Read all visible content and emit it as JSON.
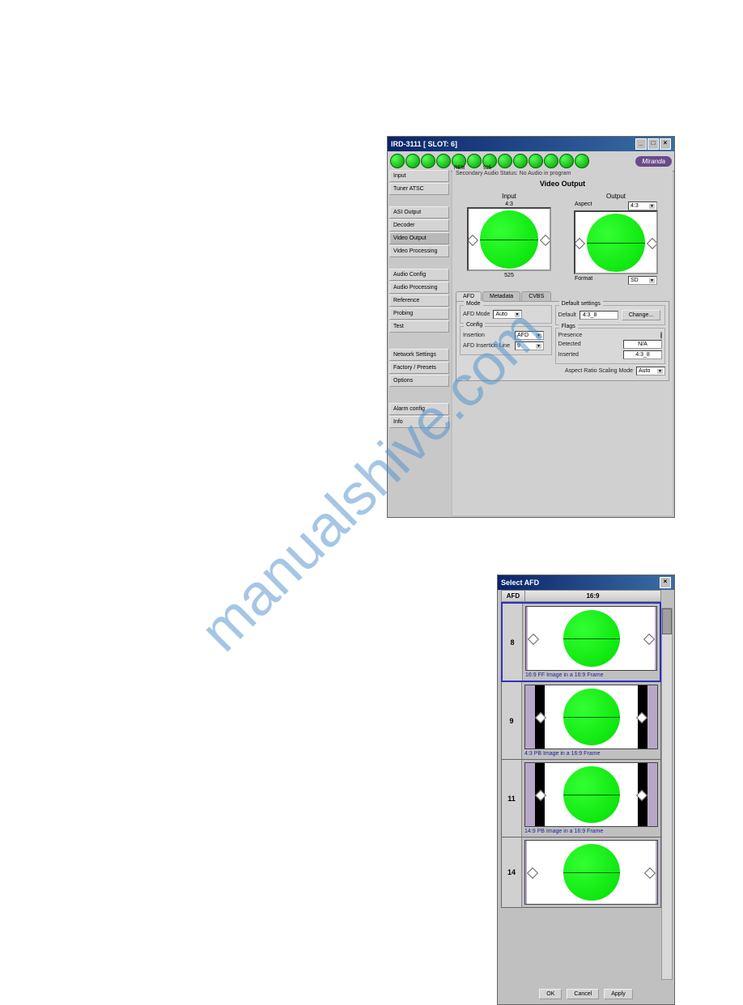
{
  "watermark": "manualshive.com",
  "window1": {
    "title": "IRD-3111 [ SLOT: 6]",
    "brand": "Miranda",
    "toolbar_sublabels": {
      "rem": "REM",
      "s25": "525"
    },
    "status": "Secondary Audio Status: No Audio in program",
    "panel_title": "Video Output",
    "sidebar": [
      "Input",
      "Tuner ATSC",
      "",
      "ASI Output",
      "Decoder",
      "Video Output",
      "Video Processing",
      "",
      "Audio Config",
      "Audio Processing",
      "Reference",
      "Probing",
      "Test",
      "",
      "Network Settings",
      "Factory / Presets",
      "Options",
      "",
      "Alarm config",
      "Info"
    ],
    "input": {
      "label": "Input",
      "aspect": "4:3",
      "format": "525"
    },
    "output": {
      "label": "Output",
      "aspect_label": "Aspect",
      "aspect_value": "4:3",
      "format_label": "Format",
      "format_value": "SD"
    },
    "tabs": [
      "AFD",
      "Metadata",
      "CVBS"
    ],
    "afd": {
      "mode_group": "Mode",
      "afd_mode_label": "AFD Mode",
      "afd_mode_value": "Auto",
      "config_group": "Config",
      "insertion_label": "Insertion",
      "insertion_value": "AFD",
      "afd_line_label": "AFD Insertion Line",
      "afd_line_value": "9",
      "default_group": "Default settings",
      "default_label": "Default",
      "default_value": "4:3_8",
      "change_btn": "Change...",
      "flags_group": "Flags",
      "presence_label": "Presence",
      "detected_label": "Detected",
      "detected_value": "N/A",
      "inserted_label": "Inserted",
      "inserted_value": "4:3_8",
      "arsm_label": "Aspect Ratio Scaling Mode",
      "arsm_value": "Auto"
    }
  },
  "window2": {
    "title": "Select AFD",
    "header_afd": "AFD",
    "header_ratio": "16:9",
    "rows": [
      {
        "num": "8",
        "caption": "16:9 FF Image in a 16:9 Frame",
        "pillarbox": false,
        "black": false,
        "selected": true
      },
      {
        "num": "9",
        "caption": "4:3 PB Image in a 16:9 Frame",
        "pillarbox": true,
        "black": true,
        "selected": false
      },
      {
        "num": "11",
        "caption": "14:9 PB Image in a 16:9 Frame",
        "pillarbox": true,
        "black": true,
        "selected": false
      },
      {
        "num": "14",
        "caption": "",
        "pillarbox": false,
        "black": false,
        "selected": false
      }
    ],
    "buttons": {
      "ok": "OK",
      "cancel": "Cancel",
      "apply": "Apply"
    }
  },
  "colors": {
    "green": "#0d0",
    "titlebar_start": "#0a246a",
    "titlebar_end": "#3a6ea5",
    "purple_bg": "#b8a8c8",
    "link_blue": "#2020a0"
  }
}
